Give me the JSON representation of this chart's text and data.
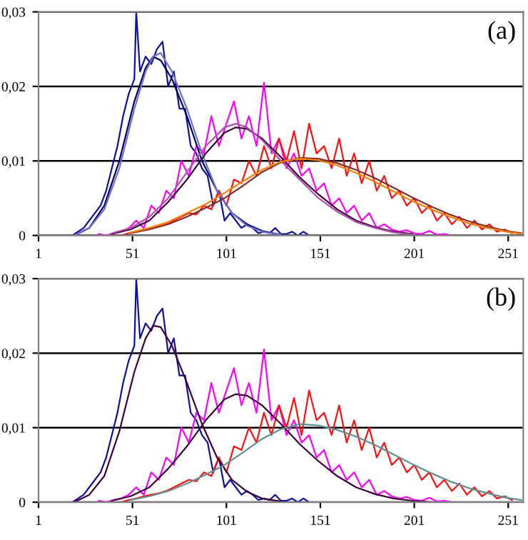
{
  "chart_data": [
    {
      "type": "line",
      "annotations": [
        "(a)"
      ],
      "xlim": [
        1,
        259
      ],
      "xticks": [
        1,
        51,
        101,
        151,
        201,
        251
      ],
      "ylim": [
        0,
        0.03
      ],
      "yticks": [
        {
          "value": 0,
          "label": "0"
        },
        {
          "value": 0.01,
          "label": "0,01"
        },
        {
          "value": 0.02,
          "label": "0,02"
        },
        {
          "value": 0.03,
          "label": "0,03"
        }
      ],
      "grid": "y",
      "marker": "none",
      "line_style": "solid",
      "series": [
        {
          "color": "#1010a0",
          "x": [
            19,
            22,
            25,
            28,
            31,
            34,
            37,
            40,
            43,
            46,
            49,
            52,
            53,
            55,
            58,
            61,
            64,
            67,
            70,
            73,
            76,
            79,
            82,
            85,
            88,
            91,
            94,
            97,
            100,
            103,
            106,
            109,
            112,
            115,
            118,
            121,
            124,
            127,
            130,
            133,
            136,
            139,
            142,
            145
          ],
          "values": [
            0,
            0.0005,
            0.001,
            0.002,
            0.003,
            0.004,
            0.006,
            0.009,
            0.012,
            0.016,
            0.019,
            0.021,
            0.03,
            0.022,
            0.024,
            0.023,
            0.025,
            0.026,
            0.02,
            0.022,
            0.017,
            0.017,
            0.012,
            0.011,
            0.009,
            0.008,
            0.004,
            0.006,
            0.002,
            0.003,
            0.002,
            0.001,
            0.0015,
            0.001,
            0.0003,
            0.0005,
            0.0003,
            0.001,
            0.0002,
            0.0002,
            0.0005,
            0,
            0.0005,
            0
          ]
        },
        {
          "color": "#ff00ff",
          "x": [
            33,
            37,
            41,
            45,
            49,
            53,
            57,
            61,
            65,
            69,
            73,
            77,
            81,
            85,
            89,
            93,
            97,
            101,
            105,
            109,
            113,
            117,
            121,
            125,
            129,
            133,
            137,
            141,
            145,
            149,
            153,
            157,
            161,
            165,
            169,
            173,
            177,
            181,
            185,
            189,
            193,
            197,
            201,
            205,
            209,
            213,
            217,
            221
          ],
          "values": [
            0.0002,
            0,
            0.0003,
            0.0005,
            0.001,
            0.002,
            0.001,
            0.004,
            0.003,
            0.006,
            0.005,
            0.01,
            0.008,
            0.012,
            0.011,
            0.016,
            0.012,
            0.015,
            0.018,
            0.013,
            0.016,
            0.012,
            0.0205,
            0.011,
            0.013,
            0.009,
            0.011,
            0.008,
            0.009,
            0.006,
            0.007,
            0.004,
            0.005,
            0.003,
            0.004,
            0.002,
            0.003,
            0.001,
            0.0015,
            0.0008,
            0.0005,
            0.0007,
            0.0003,
            0.0002,
            0.0006,
            0.0001,
            0.0002,
            0
          ]
        },
        {
          "color": "#ff1010",
          "x": [
            45,
            49,
            53,
            57,
            61,
            65,
            69,
            73,
            77,
            81,
            85,
            89,
            93,
            97,
            101,
            105,
            109,
            113,
            117,
            121,
            125,
            129,
            133,
            137,
            141,
            145,
            149,
            153,
            157,
            161,
            165,
            169,
            173,
            177,
            181,
            185,
            189,
            193,
            197,
            201,
            205,
            209,
            213,
            217,
            221,
            225,
            229,
            233,
            237,
            241,
            245,
            249,
            253
          ],
          "values": [
            0,
            0.0003,
            0.0005,
            0.0008,
            0.001,
            0.0012,
            0.0015,
            0.002,
            0.0025,
            0.003,
            0.0028,
            0.004,
            0.0035,
            0.006,
            0.004,
            0.0075,
            0.007,
            0.01,
            0.008,
            0.012,
            0.009,
            0.013,
            0.01,
            0.014,
            0.009,
            0.015,
            0.011,
            0.012,
            0.009,
            0.013,
            0.008,
            0.011,
            0.007,
            0.01,
            0.006,
            0.008,
            0.005,
            0.006,
            0.004,
            0.005,
            0.003,
            0.004,
            0.002,
            0.003,
            0.0015,
            0.0025,
            0.001,
            0.002,
            0.0008,
            0.0015,
            0.0005,
            0.0008,
            0.0003
          ]
        },
        {
          "color": "#000060",
          "x": [
            20,
            28,
            36,
            44,
            52,
            58,
            62,
            66,
            72,
            80,
            88,
            96,
            104,
            112,
            120,
            130
          ],
          "values": [
            0,
            0.001,
            0.004,
            0.01,
            0.018,
            0.0225,
            0.024,
            0.0235,
            0.021,
            0.016,
            0.01,
            0.006,
            0.003,
            0.0015,
            0.0006,
            0.0001
          ]
        },
        {
          "color": "#7070c8",
          "x": [
            20,
            28,
            36,
            44,
            52,
            58,
            62,
            66,
            72,
            80,
            88,
            96,
            104,
            112,
            120,
            130
          ],
          "values": [
            0,
            0.001,
            0.0035,
            0.009,
            0.017,
            0.022,
            0.024,
            0.0245,
            0.022,
            0.017,
            0.011,
            0.006,
            0.003,
            0.0013,
            0.0005,
            0.0001
          ]
        },
        {
          "color": "#400040",
          "x": [
            40,
            50,
            60,
            70,
            80,
            90,
            100,
            106,
            112,
            120,
            130,
            140,
            150,
            160,
            170,
            180,
            190,
            200
          ],
          "values": [
            0.0002,
            0.0008,
            0.002,
            0.0045,
            0.0075,
            0.011,
            0.0138,
            0.0145,
            0.0143,
            0.013,
            0.0105,
            0.0078,
            0.0055,
            0.0035,
            0.002,
            0.0011,
            0.0005,
            0.0002
          ]
        },
        {
          "color": "#b050b0",
          "x": [
            40,
            50,
            60,
            70,
            80,
            90,
            100,
            106,
            112,
            120,
            130,
            140,
            150,
            160,
            170,
            180,
            190,
            200
          ],
          "values": [
            0.0003,
            0.001,
            0.0025,
            0.005,
            0.0085,
            0.012,
            0.0145,
            0.015,
            0.0145,
            0.0128,
            0.01,
            0.0075,
            0.005,
            0.0032,
            0.0018,
            0.001,
            0.0004,
            0.0001
          ]
        },
        {
          "color": "#803030",
          "x": [
            50,
            60,
            70,
            80,
            90,
            100,
            110,
            120,
            130,
            140,
            150,
            160,
            170,
            180,
            190,
            200,
            210,
            220,
            230,
            240,
            250,
            258
          ],
          "values": [
            0.0003,
            0.0008,
            0.0015,
            0.0025,
            0.0037,
            0.005,
            0.0067,
            0.0085,
            0.0098,
            0.0104,
            0.0103,
            0.0097,
            0.0088,
            0.0077,
            0.0064,
            0.0051,
            0.0039,
            0.0028,
            0.0019,
            0.0012,
            0.0006,
            0.0003
          ]
        },
        {
          "color": "#ff8000",
          "x": [
            50,
            60,
            70,
            80,
            90,
            100,
            110,
            120,
            130,
            140,
            150,
            160,
            170,
            180,
            190,
            200,
            210,
            220,
            230,
            240,
            250,
            258
          ],
          "values": [
            0.0004,
            0.001,
            0.0018,
            0.003,
            0.0042,
            0.0057,
            0.0073,
            0.0088,
            0.0099,
            0.0103,
            0.0101,
            0.0094,
            0.0084,
            0.0072,
            0.0059,
            0.0046,
            0.0035,
            0.0025,
            0.0016,
            0.001,
            0.0005,
            0.0002
          ]
        }
      ]
    },
    {
      "type": "line",
      "annotations": [
        "(b)"
      ],
      "xlim": [
        1,
        259
      ],
      "xticks": [
        1,
        51,
        101,
        151,
        201,
        251
      ],
      "ylim": [
        0,
        0.03
      ],
      "yticks": [
        {
          "value": 0,
          "label": "0"
        },
        {
          "value": 0.01,
          "label": "0,01"
        },
        {
          "value": 0.02,
          "label": "0,02"
        },
        {
          "value": 0.03,
          "label": "0,03"
        }
      ],
      "grid": "y",
      "marker": "none",
      "line_style": "solid",
      "series": [
        {
          "color": "#1010a0",
          "x": [
            19,
            22,
            25,
            28,
            31,
            34,
            37,
            40,
            43,
            46,
            49,
            52,
            53,
            55,
            58,
            61,
            64,
            67,
            70,
            73,
            76,
            79,
            82,
            85,
            88,
            91,
            94,
            97,
            100,
            103,
            106,
            109,
            112,
            115,
            118,
            121,
            124,
            127,
            130,
            133,
            136,
            139,
            142,
            145
          ],
          "values": [
            0,
            0.0005,
            0.001,
            0.002,
            0.003,
            0.004,
            0.006,
            0.009,
            0.012,
            0.016,
            0.019,
            0.021,
            0.03,
            0.022,
            0.024,
            0.023,
            0.025,
            0.026,
            0.02,
            0.022,
            0.017,
            0.017,
            0.012,
            0.011,
            0.009,
            0.008,
            0.004,
            0.006,
            0.002,
            0.003,
            0.002,
            0.001,
            0.0015,
            0.001,
            0.0003,
            0.0005,
            0.0003,
            0.001,
            0.0002,
            0.0002,
            0.0005,
            0,
            0.0005,
            0
          ]
        },
        {
          "color": "#ff00ff",
          "x": [
            33,
            37,
            41,
            45,
            49,
            53,
            57,
            61,
            65,
            69,
            73,
            77,
            81,
            85,
            89,
            93,
            97,
            101,
            105,
            109,
            113,
            117,
            121,
            125,
            129,
            133,
            137,
            141,
            145,
            149,
            153,
            157,
            161,
            165,
            169,
            173,
            177,
            181,
            185,
            189,
            193,
            197,
            201,
            205,
            209,
            213,
            217,
            221
          ],
          "values": [
            0.0002,
            0,
            0.0003,
            0.0005,
            0.001,
            0.002,
            0.001,
            0.004,
            0.003,
            0.006,
            0.005,
            0.01,
            0.008,
            0.012,
            0.011,
            0.016,
            0.012,
            0.015,
            0.018,
            0.013,
            0.016,
            0.012,
            0.0205,
            0.011,
            0.013,
            0.009,
            0.011,
            0.008,
            0.009,
            0.006,
            0.007,
            0.004,
            0.005,
            0.003,
            0.004,
            0.002,
            0.003,
            0.001,
            0.0015,
            0.0008,
            0.0005,
            0.0007,
            0.0003,
            0.0002,
            0.0006,
            0.0001,
            0.0002,
            0
          ]
        },
        {
          "color": "#ff1010",
          "x": [
            45,
            49,
            53,
            57,
            61,
            65,
            69,
            73,
            77,
            81,
            85,
            89,
            93,
            97,
            101,
            105,
            109,
            113,
            117,
            121,
            125,
            129,
            133,
            137,
            141,
            145,
            149,
            153,
            157,
            161,
            165,
            169,
            173,
            177,
            181,
            185,
            189,
            193,
            197,
            201,
            205,
            209,
            213,
            217,
            221,
            225,
            229,
            233,
            237,
            241,
            245,
            249,
            253
          ],
          "values": [
            0,
            0.0003,
            0.0005,
            0.0008,
            0.001,
            0.0012,
            0.0015,
            0.002,
            0.0025,
            0.003,
            0.0028,
            0.004,
            0.0035,
            0.006,
            0.004,
            0.0075,
            0.007,
            0.01,
            0.008,
            0.012,
            0.009,
            0.013,
            0.01,
            0.014,
            0.009,
            0.015,
            0.011,
            0.012,
            0.009,
            0.013,
            0.008,
            0.011,
            0.007,
            0.01,
            0.006,
            0.008,
            0.005,
            0.006,
            0.004,
            0.005,
            0.003,
            0.004,
            0.002,
            0.003,
            0.0015,
            0.0025,
            0.001,
            0.002,
            0.0008,
            0.0015,
            0.0005,
            0.0008,
            0.0003
          ]
        },
        {
          "color": "#400040",
          "x": [
            20,
            28,
            36,
            44,
            52,
            58,
            62,
            66,
            72,
            80,
            88,
            96,
            104,
            112,
            120,
            130
          ],
          "values": [
            0,
            0.001,
            0.0035,
            0.0095,
            0.0175,
            0.022,
            0.0237,
            0.0235,
            0.021,
            0.016,
            0.0105,
            0.006,
            0.003,
            0.0014,
            0.0005,
            0.0001
          ]
        },
        {
          "color": "#400040",
          "x": [
            40,
            50,
            60,
            70,
            80,
            90,
            100,
            106,
            112,
            120,
            130,
            140,
            150,
            160,
            170,
            180,
            190,
            200,
            210
          ],
          "values": [
            0.0002,
            0.0008,
            0.002,
            0.0045,
            0.0075,
            0.011,
            0.0138,
            0.0145,
            0.0143,
            0.013,
            0.0105,
            0.0078,
            0.0055,
            0.0035,
            0.002,
            0.0011,
            0.0005,
            0.0002,
            0
          ]
        },
        {
          "color": "#609090",
          "x": [
            50,
            60,
            70,
            80,
            90,
            100,
            110,
            120,
            130,
            140,
            150,
            160,
            170,
            180,
            190,
            200,
            210,
            220,
            230,
            240,
            250,
            258
          ],
          "values": [
            0.0003,
            0.0008,
            0.0015,
            0.0025,
            0.0037,
            0.005,
            0.0067,
            0.0085,
            0.0098,
            0.0105,
            0.0103,
            0.0097,
            0.0088,
            0.0077,
            0.0064,
            0.0051,
            0.0039,
            0.0028,
            0.0019,
            0.0012,
            0.0006,
            0.0003
          ]
        }
      ]
    }
  ]
}
